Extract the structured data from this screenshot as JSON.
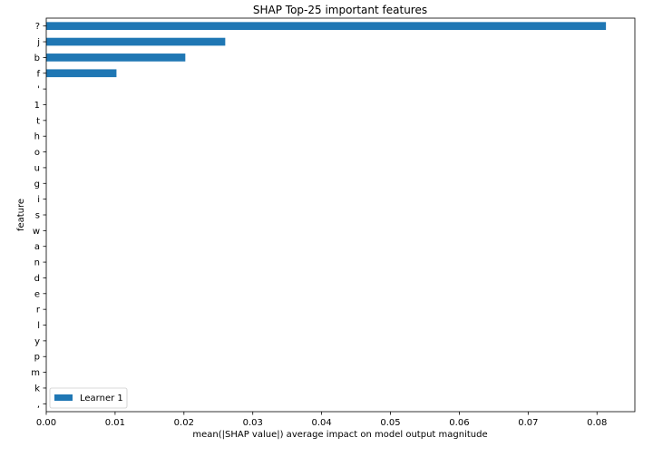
{
  "chart_data": {
    "type": "bar",
    "orientation": "horizontal",
    "title": "SHAP Top-25 important features",
    "xlabel": "mean(|SHAP value|) average impact on model output magnitude",
    "ylabel": "feature",
    "categories": [
      "?",
      "j",
      "b",
      "f",
      "'",
      "1",
      "t",
      "h",
      "o",
      "u",
      "g",
      "i",
      "s",
      "w",
      "a",
      "n",
      "d",
      "e",
      "r",
      "l",
      "y",
      "p",
      "m",
      "k",
      ","
    ],
    "series": [
      {
        "name": "Learner 1",
        "color": "#1f77b4",
        "values": [
          0.0813,
          0.026,
          0.0202,
          0.0102,
          0,
          0,
          0,
          0,
          0,
          0,
          0,
          0,
          0,
          0,
          0,
          0,
          0,
          0,
          0,
          0,
          0,
          0,
          0,
          0,
          0
        ]
      }
    ],
    "xlim": [
      0,
      0.0855
    ],
    "xticks": [
      0.0,
      0.01,
      0.02,
      0.03,
      0.04,
      0.05,
      0.06,
      0.07,
      0.08
    ],
    "xtick_labels": [
      "0.00",
      "0.01",
      "0.02",
      "0.03",
      "0.04",
      "0.05",
      "0.06",
      "0.07",
      "0.08"
    ],
    "grid": false,
    "legend_position": "lower-left"
  }
}
